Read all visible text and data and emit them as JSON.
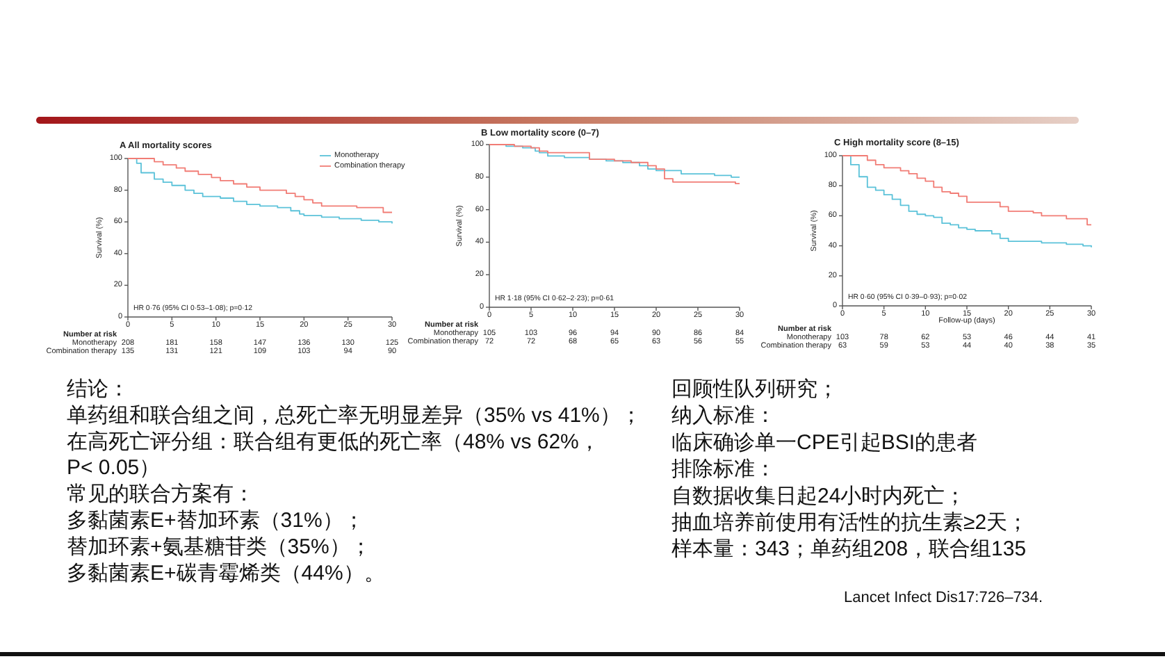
{
  "chart_data": [
    {
      "type": "step",
      "title": "A  All mortality scores",
      "ylabel": "Survival (%)",
      "xlim": [
        0,
        30
      ],
      "xticks": [
        0,
        5,
        10,
        15,
        20,
        25,
        30
      ],
      "ylim": [
        0,
        100
      ],
      "yticks": [
        0,
        20,
        40,
        60,
        80,
        100
      ],
      "legend": "top right",
      "annotations": [
        "HR 0·76 (95% CI 0·53–1·08); p=0·12"
      ],
      "series": [
        {
          "name": "Monotherapy",
          "color": "#5bc2d9",
          "x": [
            0,
            1,
            1.5,
            3,
            4,
            5,
            6.5,
            7.5,
            8.5,
            10.5,
            12,
            13.5,
            15,
            17,
            18.5,
            19.5,
            20,
            22,
            24,
            26.5,
            28.5,
            30
          ],
          "values": [
            100,
            97,
            91,
            87,
            85,
            83,
            80,
            78,
            76,
            75,
            73,
            71,
            70,
            69,
            67,
            65,
            64,
            63,
            62,
            61,
            60,
            59
          ]
        },
        {
          "name": "Combination therapy",
          "color": "#f17c75",
          "x": [
            0,
            3,
            4,
            5.5,
            6.5,
            8,
            9.5,
            10.5,
            12,
            13.5,
            15,
            18,
            19,
            20,
            21,
            22,
            26,
            29,
            30
          ],
          "values": [
            100,
            98,
            96,
            94,
            92,
            90,
            88,
            86,
            84,
            82,
            80,
            78,
            76,
            74,
            72,
            70,
            69,
            66,
            66
          ]
        }
      ]
    },
    {
      "type": "other",
      "title": "Number at risk",
      "annotations": [
        "Monotherapy",
        "208",
        "181",
        "158",
        "147",
        "136",
        "130",
        "125",
        "Combination therapy",
        "135",
        "131",
        "121",
        "109",
        "103",
        "94",
        "90"
      ]
    },
    {
      "type": "step",
      "title": "B  Low mortality score (0–7)",
      "ylabel": "Survival (%)",
      "xlim": [
        0,
        30
      ],
      "xticks": [
        0,
        5,
        10,
        15,
        20,
        25,
        30
      ],
      "ylim": [
        0,
        100
      ],
      "yticks": [
        0,
        20,
        40,
        60,
        80,
        100
      ],
      "annotations": [
        "HR 1·18 (95% CI 0·62–2·23); p=0·61"
      ],
      "series": [
        {
          "color": "#5bc2d9",
          "x": [
            0,
            2,
            4,
            5.5,
            6,
            7,
            9,
            12,
            14,
            16,
            18,
            19,
            20,
            23,
            27,
            29,
            30
          ],
          "values": [
            100,
            99,
            98,
            96,
            95,
            93,
            92,
            91,
            90,
            89,
            87,
            85,
            84,
            82,
            81,
            80,
            80
          ]
        },
        {
          "color": "#f17c75",
          "x": [
            0,
            3,
            5,
            6,
            7,
            12,
            15,
            17,
            19,
            20,
            21,
            22,
            29.5,
            30
          ],
          "values": [
            100,
            99,
            98,
            96,
            95,
            91,
            90,
            89,
            87,
            85,
            79,
            77,
            76,
            76
          ]
        }
      ]
    },
    {
      "type": "other",
      "title": "Number at risk",
      "annotations": [
        "Monotherapy",
        "105",
        "103",
        "96",
        "94",
        "90",
        "86",
        "84",
        "Combination therapy",
        "72",
        "72",
        "68",
        "65",
        "63",
        "56",
        "55"
      ]
    },
    {
      "type": "step",
      "title": "C  High mortality score (8–15)",
      "ylabel": "Survival (%)",
      "xlabel": "Follow-up (days)",
      "xlim": [
        0,
        30
      ],
      "xticks": [
        0,
        5,
        10,
        15,
        20,
        25,
        30
      ],
      "ylim": [
        0,
        100
      ],
      "yticks": [
        0,
        20,
        40,
        60,
        80,
        100
      ],
      "annotations": [
        "HR 0·60 (95% CI 0·39–0·93); p=0·02"
      ],
      "series": [
        {
          "color": "#5bc2d9",
          "x": [
            0,
            1,
            2,
            3,
            4,
            5,
            6,
            7,
            8,
            9,
            10,
            11,
            12,
            13,
            14,
            15,
            16,
            18,
            19,
            20,
            24,
            27,
            29,
            30
          ],
          "values": [
            100,
            94,
            86,
            79,
            77,
            74,
            71,
            67,
            63,
            61,
            60,
            59,
            55,
            54,
            52,
            51,
            50,
            48,
            45,
            43,
            42,
            41,
            40,
            39
          ]
        },
        {
          "color": "#f17c75",
          "x": [
            0,
            3,
            4,
            5,
            7,
            8,
            9,
            10,
            11,
            12,
            13,
            14,
            15,
            19,
            20,
            23,
            24,
            27,
            29.5,
            30
          ],
          "values": [
            100,
            97,
            94,
            92,
            90,
            88,
            85,
            83,
            79,
            76,
            75,
            73,
            69,
            66,
            63,
            62,
            60,
            58,
            54,
            54
          ]
        }
      ]
    },
    {
      "type": "other",
      "title": "Number at risk",
      "annotations": [
        "Monotherapy",
        "103",
        "78",
        "62",
        "53",
        "46",
        "44",
        "41",
        "Combination therapy",
        "63",
        "59",
        "53",
        "44",
        "40",
        "38",
        "35"
      ]
    },
    {
      "type": "other",
      "annotations": [
        "结论：",
        "单药组和联合组之间，总死亡率无明显差异（35% vs 41%）；",
        "在高死亡评分组：联合组有更低的死亡率（48% vs 62%，",
        "P< 0.05）",
        "常见的联合方案有：",
        "多黏菌素E+替加环素（31%）；",
        "替加环素+氨基糖苷类（35%）；",
        "多黏菌素E+碳青霉烯类（44%）。"
      ]
    },
    {
      "type": "other",
      "annotations": [
        "回顾性队列研究；",
        "纳入标准：",
        "临床确诊单一CPE引起BSI的患者",
        "排除标准：",
        "自数据收集日起24小时内死亡；",
        "抽血培养前使用有活性的抗生素≥2天；",
        "样本量：343；单药组208，联合组135"
      ]
    },
    {
      "type": "other",
      "annotations": [
        "Lancet Infect Dis17:726–734."
      ]
    }
  ]
}
